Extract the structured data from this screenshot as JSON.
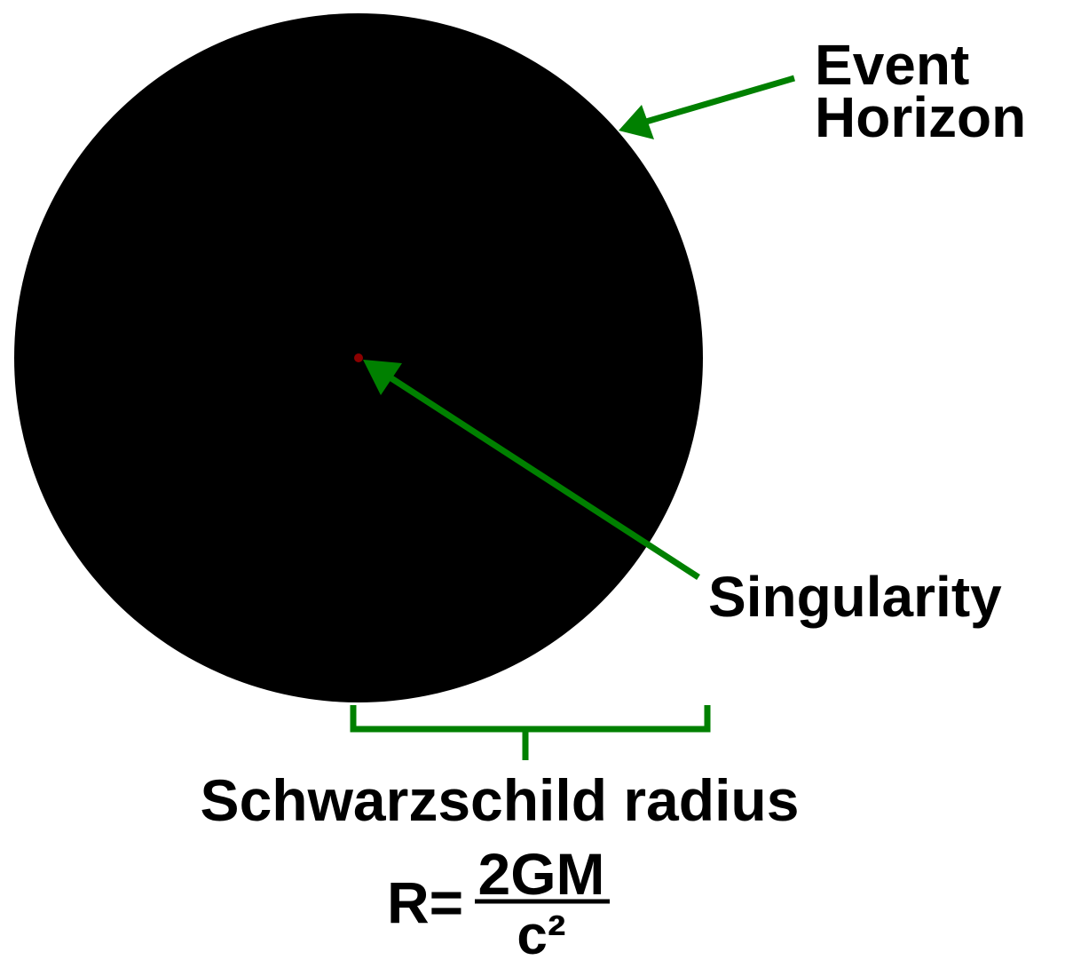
{
  "labels": {
    "event_horizon_line1": "Event",
    "event_horizon_line2": "Horizon",
    "singularity": "Singularity",
    "schwarzschild_radius": "Schwarzschild radius"
  },
  "formula": {
    "lhs": "R=",
    "numerator": "2GM",
    "denominator": "c²"
  },
  "colors": {
    "black_hole": "#000000",
    "arrow": "#008000",
    "singularity_point": "#8b0000",
    "text": "#000000",
    "background": "#ffffff"
  }
}
